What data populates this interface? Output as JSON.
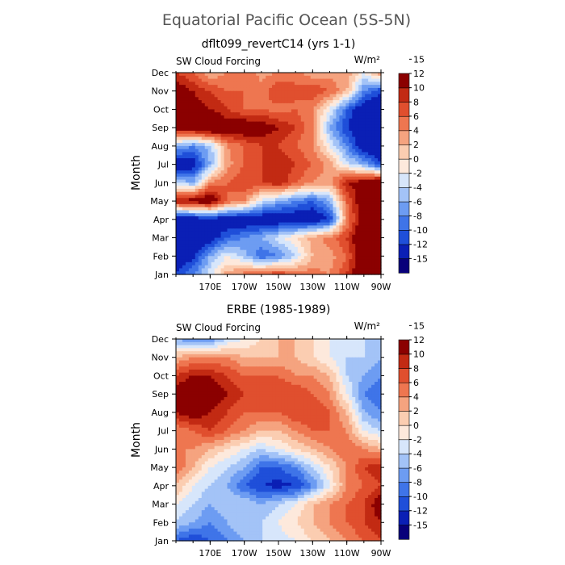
{
  "title": "Equatorial Pacific Ocean (5S-5N)",
  "colors": [
    "#08007a",
    "#0a1fb5",
    "#1f4fd9",
    "#3f74e8",
    "#6d9cf2",
    "#a3c3f7",
    "#d7e6fb",
    "#fde9dc",
    "#fbcdb1",
    "#f5a37f",
    "#ee7650",
    "#e04f2e",
    "#c22a13",
    "#8b0000"
  ],
  "chart_data": [
    {
      "type": "heatmap",
      "heading": "dflt099_revertC14 (yrs 1-1)",
      "field_label": "SW Cloud Forcing",
      "units": "W/m²",
      "xlabel": "",
      "ylabel": "Month",
      "x_ticks": [
        "170E",
        "170W",
        "150W",
        "130W",
        "110W",
        "90W"
      ],
      "x_tick_values": [
        170,
        190,
        210,
        230,
        250,
        270
      ],
      "xlim": [
        150,
        270
      ],
      "y_ticks": [
        "Jan",
        "Feb",
        "Mar",
        "Apr",
        "May",
        "Jun",
        "Jul",
        "Aug",
        "Sep",
        "Oct",
        "Nov",
        "Dec"
      ],
      "colorbar_levels": [
        "15",
        "12",
        "10",
        "8",
        "6",
        "4",
        "2",
        "0",
        "-2",
        "-4",
        "-6",
        "-8",
        "-10",
        "-12",
        "-15"
      ],
      "bounds": [
        -15,
        -12,
        -10,
        -8,
        -6,
        -4,
        -2,
        0,
        2,
        4,
        6,
        8,
        10,
        12,
        15
      ],
      "grid_x": [
        150,
        160,
        170,
        180,
        190,
        200,
        210,
        220,
        230,
        240,
        250,
        260,
        270
      ],
      "values": [
        [
          -12,
          -8,
          -3,
          3,
          5,
          6,
          8,
          6,
          5,
          4,
          8,
          14,
          15
        ],
        [
          -15,
          -13,
          -6,
          -2,
          -5,
          -10,
          -8,
          -4,
          2,
          3,
          6,
          14,
          15
        ],
        [
          -15,
          -15,
          -14,
          -10,
          -8,
          -6,
          -3,
          0,
          3,
          5,
          8,
          14,
          15
        ],
        [
          -15,
          -15,
          -13,
          -15,
          -15,
          -15,
          -15,
          -15,
          -15,
          -12,
          4,
          13,
          15
        ],
        [
          10,
          12,
          13,
          6,
          4,
          -3,
          -6,
          -8,
          -10,
          -6,
          6,
          13,
          15
        ],
        [
          -4,
          -6,
          4,
          6,
          8,
          8,
          10,
          6,
          4,
          3,
          10,
          12,
          15
        ],
        [
          -15,
          -14,
          -6,
          3,
          6,
          8,
          10,
          8,
          6,
          3,
          -3,
          -6,
          -12
        ],
        [
          -6,
          -8,
          -5,
          4,
          6,
          8,
          8,
          6,
          4,
          -2,
          -8,
          -15,
          -15
        ],
        [
          12,
          13,
          15,
          12,
          13,
          12,
          10,
          8,
          4,
          -6,
          -12,
          -15,
          -15
        ],
        [
          12,
          11,
          10,
          8,
          6,
          6,
          5,
          6,
          4,
          -2,
          -10,
          -15,
          -15
        ],
        [
          12,
          10,
          8,
          6,
          6,
          5,
          8,
          6,
          8,
          6,
          2,
          -8,
          -12
        ],
        [
          8,
          6,
          2,
          4,
          6,
          3,
          4,
          6,
          2,
          3,
          4,
          -2,
          4
        ]
      ]
    },
    {
      "type": "heatmap",
      "heading": "ERBE (1985-1989)",
      "field_label": "SW Cloud Forcing",
      "units": "W/m²",
      "xlabel": "",
      "ylabel": "Month",
      "x_ticks": [
        "170E",
        "170W",
        "150W",
        "130W",
        "110W",
        "90W"
      ],
      "x_tick_values": [
        170,
        190,
        210,
        230,
        250,
        270
      ],
      "xlim": [
        150,
        270
      ],
      "y_ticks": [
        "Jan",
        "Feb",
        "Mar",
        "Apr",
        "May",
        "Jun",
        "Jul",
        "Aug",
        "Sep",
        "Oct",
        "Nov",
        "Dec"
      ],
      "colorbar_levels": [
        "15",
        "12",
        "10",
        "8",
        "6",
        "4",
        "2",
        "0",
        "-2",
        "-4",
        "-6",
        "-8",
        "-10",
        "-12",
        "-15"
      ],
      "bounds": [
        -15,
        -12,
        -10,
        -8,
        -6,
        -4,
        -2,
        0,
        2,
        4,
        6,
        8,
        10,
        12,
        15
      ],
      "grid_x": [
        150,
        160,
        170,
        180,
        190,
        200,
        210,
        220,
        230,
        240,
        250,
        260,
        270
      ],
      "values": [
        [
          -10,
          -12,
          -10,
          -8,
          -6,
          -4,
          -3,
          -2,
          0,
          2,
          4,
          6,
          8
        ],
        [
          -4,
          -6,
          -8,
          -6,
          -4,
          -4,
          -2,
          0,
          2,
          4,
          6,
          8,
          10
        ],
        [
          -2,
          -4,
          -6,
          -4,
          -4,
          -6,
          -4,
          -2,
          2,
          4,
          6,
          8,
          12
        ],
        [
          2,
          -2,
          -4,
          -6,
          -10,
          -12,
          -13,
          -12,
          -8,
          -2,
          4,
          6,
          8
        ],
        [
          6,
          2,
          -2,
          -4,
          -6,
          -10,
          -10,
          -8,
          -4,
          0,
          4,
          8,
          10
        ],
        [
          4,
          4,
          2,
          0,
          -2,
          -4,
          -2,
          0,
          2,
          4,
          6,
          4,
          2
        ],
        [
          4,
          6,
          8,
          6,
          4,
          2,
          2,
          4,
          6,
          6,
          4,
          -2,
          -4
        ],
        [
          10,
          12,
          10,
          8,
          6,
          6,
          6,
          8,
          8,
          6,
          2,
          -6,
          -8
        ],
        [
          12,
          14,
          12,
          10,
          8,
          8,
          8,
          8,
          6,
          4,
          -2,
          -8,
          -10
        ],
        [
          8,
          10,
          10,
          8,
          6,
          6,
          6,
          4,
          4,
          2,
          -4,
          -6,
          -8
        ],
        [
          2,
          4,
          4,
          4,
          2,
          2,
          2,
          2,
          0,
          -2,
          -4,
          -4,
          -6
        ],
        [
          -6,
          -8,
          -8,
          -4,
          -2,
          0,
          2,
          2,
          0,
          -2,
          -2,
          -4,
          -6
        ]
      ]
    }
  ]
}
